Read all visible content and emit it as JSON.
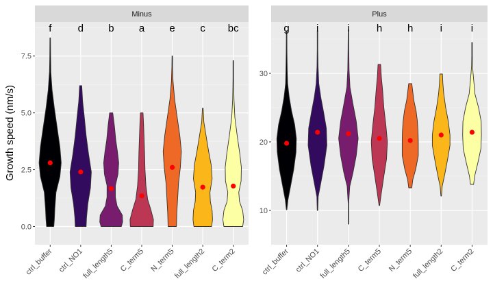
{
  "chart_data": {
    "type": "violin",
    "ylabel": "Growth speed (nm/s)",
    "xlabel": "",
    "categories": [
      "ctrl_buffer",
      "ctrl_NO1",
      "full_length5",
      "C_term5",
      "N_term5",
      "full_length2",
      "C_term2"
    ],
    "fill_colors": [
      "#000004",
      "#320a5e",
      "#781c6d",
      "#bb3754",
      "#ed6925",
      "#fbb61a",
      "#fcffa4"
    ],
    "mean_marker_color": "#ff0000",
    "panel_background": "#ebebeb",
    "strip_background": "#d9d9d9",
    "grid": true,
    "legend": "none",
    "panels": [
      {
        "strip": "Minus",
        "ylim": [
          -0.8,
          9.0
        ],
        "yticks": [
          0.0,
          2.5,
          5.0,
          7.5
        ],
        "ytick_labels": [
          "0.0",
          "2.5",
          "5.0",
          "7.5"
        ],
        "letters": [
          "f",
          "d",
          "b",
          "a",
          "e",
          "c",
          "bc"
        ],
        "means": [
          2.8,
          2.4,
          1.67,
          1.35,
          2.6,
          1.73,
          1.78
        ],
        "violins": [
          {
            "min": 0.0,
            "max": 8.3,
            "profile": [
              [
                0.0,
                0.28
              ],
              [
                0.3,
                0.32
              ],
              [
                0.8,
                0.36
              ],
              [
                1.5,
                0.45
              ],
              [
                2.2,
                0.75
              ],
              [
                2.8,
                0.85
              ],
              [
                3.5,
                0.75
              ],
              [
                4.3,
                0.55
              ],
              [
                5.2,
                0.32
              ],
              [
                6.0,
                0.15
              ],
              [
                6.8,
                0.05
              ],
              [
                7.5,
                0.03
              ],
              [
                8.3,
                0.02
              ]
            ]
          },
          {
            "min": 0.0,
            "max": 6.2,
            "profile": [
              [
                0.0,
                0.42
              ],
              [
                0.4,
                0.45
              ],
              [
                1.0,
                0.55
              ],
              [
                1.7,
                0.75
              ],
              [
                2.4,
                0.82
              ],
              [
                3.2,
                0.6
              ],
              [
                4.0,
                0.42
              ],
              [
                4.8,
                0.28
              ],
              [
                5.5,
                0.15
              ],
              [
                6.2,
                0.08
              ]
            ]
          },
          {
            "min": 0.0,
            "max": 5.0,
            "profile": [
              [
                0.0,
                0.78
              ],
              [
                0.2,
                0.88
              ],
              [
                0.5,
                0.85
              ],
              [
                0.9,
                0.45
              ],
              [
                1.3,
                0.32
              ],
              [
                1.8,
                0.32
              ],
              [
                2.3,
                0.52
              ],
              [
                2.8,
                0.58
              ],
              [
                3.3,
                0.48
              ],
              [
                3.8,
                0.35
              ],
              [
                4.4,
                0.25
              ],
              [
                5.0,
                0.12
              ]
            ]
          },
          {
            "min": 0.0,
            "max": 5.0,
            "profile": [
              [
                0.0,
                0.88
              ],
              [
                0.3,
                0.9
              ],
              [
                0.7,
                0.72
              ],
              [
                1.2,
                0.45
              ],
              [
                1.8,
                0.32
              ],
              [
                2.5,
                0.25
              ],
              [
                3.2,
                0.22
              ],
              [
                3.9,
                0.18
              ],
              [
                4.5,
                0.14
              ],
              [
                5.0,
                0.1
              ]
            ]
          },
          {
            "min": 0.0,
            "max": 7.5,
            "profile": [
              [
                0.0,
                0.32
              ],
              [
                0.6,
                0.35
              ],
              [
                1.3,
                0.42
              ],
              [
                1.9,
                0.48
              ],
              [
                2.6,
                0.62
              ],
              [
                3.3,
                0.7
              ],
              [
                4.0,
                0.58
              ],
              [
                4.8,
                0.38
              ],
              [
                5.6,
                0.18
              ],
              [
                6.4,
                0.06
              ],
              [
                7.0,
                0.03
              ],
              [
                7.5,
                0.02
              ]
            ]
          },
          {
            "min": 0.0,
            "max": 5.2,
            "profile": [
              [
                0.0,
                0.68
              ],
              [
                0.3,
                0.75
              ],
              [
                0.7,
                0.72
              ],
              [
                1.1,
                0.58
              ],
              [
                1.5,
                0.55
              ],
              [
                2.1,
                0.72
              ],
              [
                2.7,
                0.65
              ],
              [
                3.3,
                0.45
              ],
              [
                4.0,
                0.25
              ],
              [
                4.6,
                0.08
              ],
              [
                5.2,
                0.03
              ]
            ]
          },
          {
            "min": 0.0,
            "max": 7.3,
            "profile": [
              [
                0.0,
                0.72
              ],
              [
                0.3,
                0.8
              ],
              [
                0.7,
                0.72
              ],
              [
                1.1,
                0.48
              ],
              [
                1.5,
                0.42
              ],
              [
                2.0,
                0.6
              ],
              [
                2.6,
                0.62
              ],
              [
                3.2,
                0.5
              ],
              [
                4.0,
                0.3
              ],
              [
                4.8,
                0.12
              ],
              [
                5.6,
                0.05
              ],
              [
                6.5,
                0.02
              ],
              [
                7.3,
                0.02
              ]
            ]
          }
        ]
      },
      {
        "strip": "Plus",
        "ylim": [
          5.0,
          37.5
        ],
        "yticks": [
          10,
          20,
          30
        ],
        "ytick_labels": [
          "10",
          "20",
          "30"
        ],
        "letters": [
          "g",
          "i",
          "i",
          "h",
          "h",
          "i",
          "i"
        ],
        "means": [
          19.8,
          21.4,
          21.2,
          20.5,
          20.2,
          21.0,
          21.4
        ],
        "violins": [
          {
            "min": 10.1,
            "max": 36.2,
            "profile": [
              [
                10.1,
                0.02
              ],
              [
                11.5,
                0.1
              ],
              [
                13.5,
                0.3
              ],
              [
                16.0,
                0.55
              ],
              [
                18.5,
                0.72
              ],
              [
                20.5,
                0.75
              ],
              [
                22.5,
                0.62
              ],
              [
                24.5,
                0.38
              ],
              [
                26.5,
                0.2
              ],
              [
                28.5,
                0.08
              ],
              [
                30.5,
                0.05
              ],
              [
                33.0,
                0.03
              ],
              [
                36.2,
                0.02
              ]
            ]
          },
          {
            "min": 10.0,
            "max": 36.2,
            "profile": [
              [
                10.0,
                0.02
              ],
              [
                12.0,
                0.05
              ],
              [
                14.0,
                0.25
              ],
              [
                16.5,
                0.5
              ],
              [
                19.5,
                0.72
              ],
              [
                22.0,
                0.68
              ],
              [
                24.5,
                0.45
              ],
              [
                26.5,
                0.25
              ],
              [
                28.5,
                0.1
              ],
              [
                31.0,
                0.04
              ],
              [
                33.5,
                0.02
              ],
              [
                36.2,
                0.02
              ]
            ]
          },
          {
            "min": 8.0,
            "max": 36.4,
            "profile": [
              [
                8.0,
                0.02
              ],
              [
                11.0,
                0.02
              ],
              [
                13.5,
                0.1
              ],
              [
                15.5,
                0.35
              ],
              [
                18.0,
                0.6
              ],
              [
                20.5,
                0.75
              ],
              [
                23.0,
                0.6
              ],
              [
                25.5,
                0.35
              ],
              [
                28.0,
                0.12
              ],
              [
                30.5,
                0.05
              ],
              [
                33.5,
                0.03
              ],
              [
                36.4,
                0.02
              ]
            ]
          },
          {
            "min": 10.7,
            "max": 31.3,
            "profile": [
              [
                10.7,
                0.02
              ],
              [
                12.5,
                0.15
              ],
              [
                15.0,
                0.35
              ],
              [
                17.5,
                0.55
              ],
              [
                20.0,
                0.62
              ],
              [
                22.5,
                0.5
              ],
              [
                25.0,
                0.35
              ],
              [
                27.5,
                0.25
              ],
              [
                29.5,
                0.15
              ],
              [
                31.3,
                0.1
              ]
            ]
          },
          {
            "min": 13.3,
            "max": 28.5,
            "profile": [
              [
                13.3,
                0.12
              ],
              [
                14.5,
                0.2
              ],
              [
                16.0,
                0.42
              ],
              [
                18.0,
                0.62
              ],
              [
                20.0,
                0.62
              ],
              [
                21.5,
                0.6
              ],
              [
                23.0,
                0.55
              ],
              [
                24.5,
                0.45
              ],
              [
                26.0,
                0.28
              ],
              [
                27.5,
                0.18
              ],
              [
                28.5,
                0.12
              ]
            ]
          },
          {
            "min": 12.1,
            "max": 29.9,
            "profile": [
              [
                12.1,
                0.02
              ],
              [
                13.5,
                0.08
              ],
              [
                15.5,
                0.3
              ],
              [
                17.5,
                0.5
              ],
              [
                19.5,
                0.68
              ],
              [
                21.0,
                0.68
              ],
              [
                23.0,
                0.55
              ],
              [
                25.0,
                0.35
              ],
              [
                27.0,
                0.2
              ],
              [
                28.5,
                0.13
              ],
              [
                29.9,
                0.1
              ]
            ]
          },
          {
            "min": 13.8,
            "max": 34.5,
            "profile": [
              [
                13.8,
                0.12
              ],
              [
                15.0,
                0.2
              ],
              [
                17.0,
                0.45
              ],
              [
                19.0,
                0.68
              ],
              [
                21.0,
                0.72
              ],
              [
                23.0,
                0.7
              ],
              [
                25.0,
                0.5
              ],
              [
                27.0,
                0.22
              ],
              [
                28.5,
                0.15
              ],
              [
                30.0,
                0.08
              ],
              [
                31.0,
                0.04
              ],
              [
                32.5,
                0.02
              ],
              [
                34.5,
                0.02
              ]
            ]
          }
        ]
      }
    ]
  }
}
